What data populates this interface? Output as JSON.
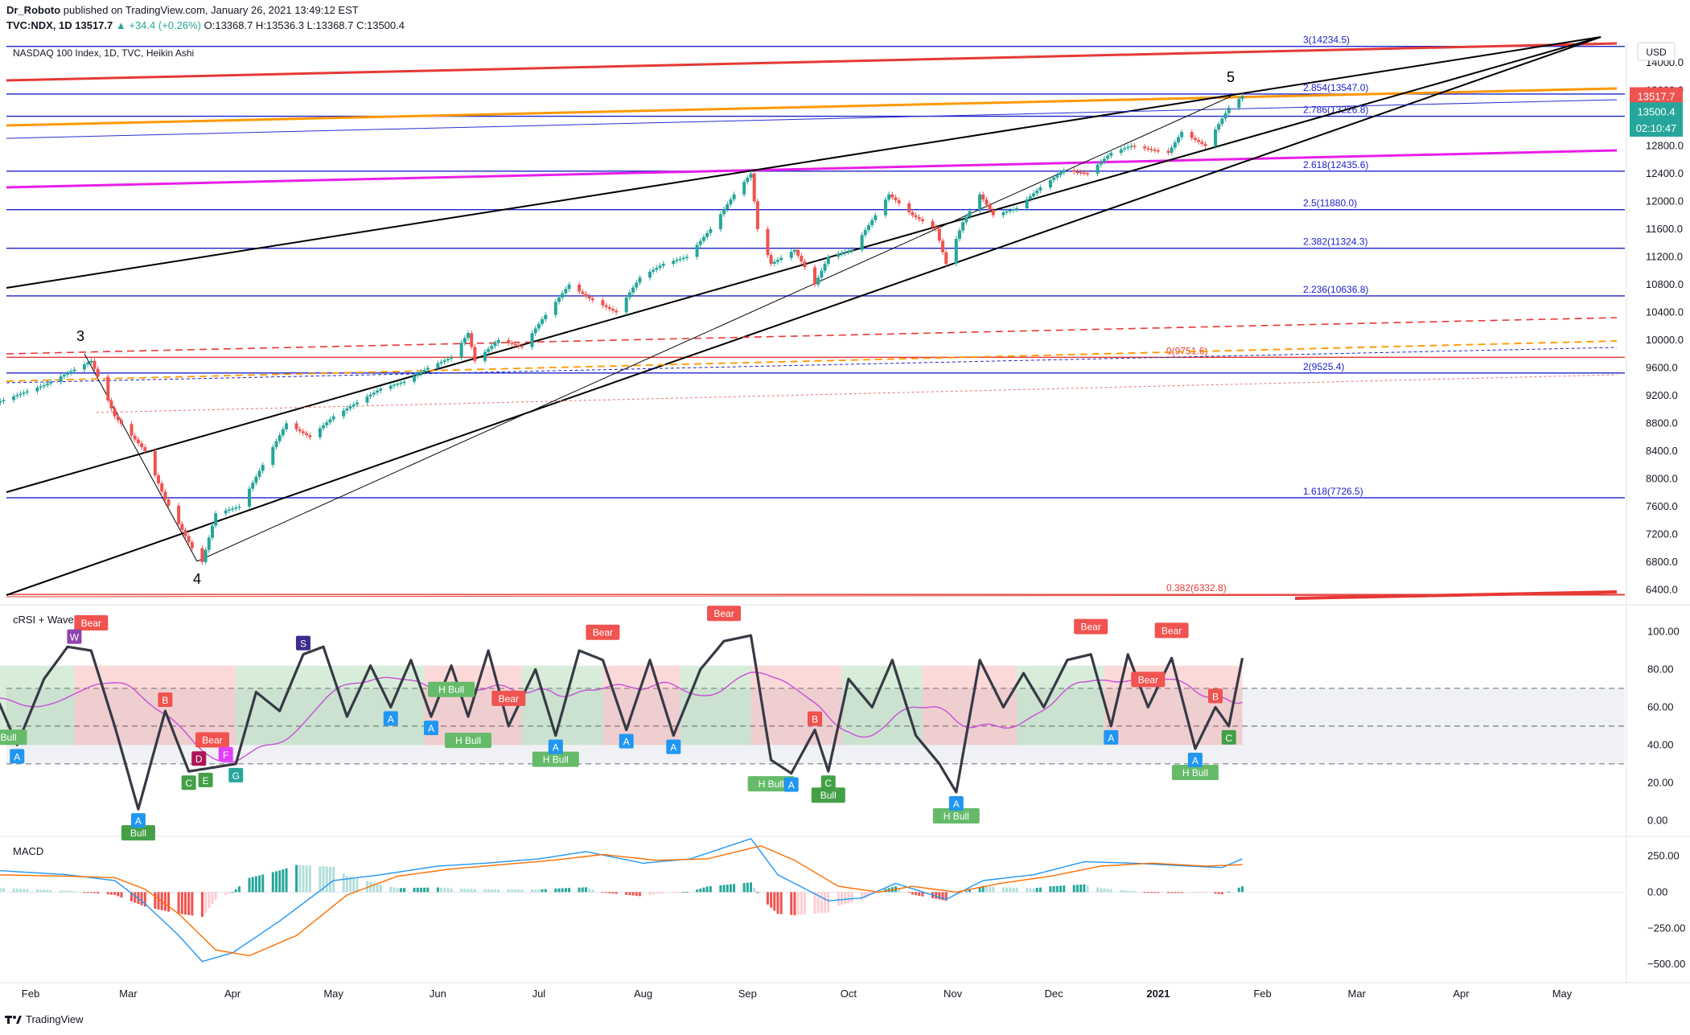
{
  "header": {
    "publisher": "Dr_Roboto",
    "published_text": "published on TradingView.com, January 26, 2021 13:49:12 EST",
    "symbol_line_prefix": "TVC:NDX, 1D",
    "last": "13517.7",
    "change": "▲ +34.4 (+0.26%)",
    "ohlc": "O:13368.7 H:13536.3 L:13368.7 C:13500.4",
    "chart_title": "NASDAQ 100 Index, 1D, TVC, Heikin Ashi",
    "currency": "USD"
  },
  "price_badges": {
    "last_price": "13517.7",
    "ha_close": "13500.4",
    "countdown": "02:10:47"
  },
  "colors": {
    "up": "#26a69a",
    "down": "#ef5350",
    "fib_blue": "#1e22c8",
    "red_line": "#e53935",
    "orange_line": "#ff9800",
    "magenta_line": "#e91ee9",
    "crsi_line": "#363a45",
    "macd_line": "#2196f3",
    "signal_line": "#ff6d00"
  },
  "chart_data": [
    {
      "type": "candlestick",
      "name": "price",
      "title": "NASDAQ 100 Index, 1D, TVC, Heikin Ashi",
      "y_ticks": [
        14000,
        13600,
        12800,
        12400,
        12000,
        11600,
        11200,
        10800,
        10400,
        10000,
        9600,
        9200,
        8800,
        8400,
        8000,
        7600,
        7200,
        6800,
        6400
      ],
      "y_tick_labels": [
        "14000.0",
        "13600.0",
        "12800.0",
        "12400.0",
        "12000.0",
        "11600.0",
        "11200.0",
        "10800.0",
        "10400.0",
        "10000.0",
        "9600.0",
        "9200.0",
        "8800.0",
        "8400.0",
        "8000.0",
        "7600.0",
        "7200.0",
        "6800.0",
        "6400.0"
      ],
      "ylim": [
        6300,
        14300
      ],
      "x_tick_labels": [
        "Feb",
        "Mar",
        "Apr",
        "May",
        "Jun",
        "Jul",
        "Aug",
        "Sep",
        "Oct",
        "Nov",
        "Dec",
        "2021",
        "Feb",
        "Mar",
        "Apr",
        "May"
      ],
      "x_tick_dates": [
        "2020-02-01",
        "2020-03-01",
        "2020-04-01",
        "2020-05-01",
        "2020-06-01",
        "2020-07-01",
        "2020-08-01",
        "2020-09-01",
        "2020-10-01",
        "2020-11-01",
        "2020-12-01",
        "2021-01-01",
        "2021-02-01",
        "2021-03-01",
        "2021-04-01",
        "2021-05-01"
      ],
      "close_path": [
        [
          "2020-01-22",
          9100
        ],
        [
          "2020-02-05",
          9350
        ],
        [
          "2020-02-19",
          9700
        ],
        [
          "2020-02-26",
          8900
        ],
        [
          "2020-03-06",
          8400
        ],
        [
          "2020-03-12",
          7700
        ],
        [
          "2020-03-20",
          7000
        ],
        [
          "2020-03-23",
          6800
        ],
        [
          "2020-03-27",
          7500
        ],
        [
          "2020-04-03",
          7600
        ],
        [
          "2020-04-10",
          8200
        ],
        [
          "2020-04-17",
          8800
        ],
        [
          "2020-04-24",
          8600
        ],
        [
          "2020-05-01",
          8900
        ],
        [
          "2020-05-08",
          9100
        ],
        [
          "2020-05-15",
          9300
        ],
        [
          "2020-05-22",
          9400
        ],
        [
          "2020-05-29",
          9600
        ],
        [
          "2020-06-05",
          9750
        ],
        [
          "2020-06-10",
          10100
        ],
        [
          "2020-06-12",
          9700
        ],
        [
          "2020-06-19",
          10000
        ],
        [
          "2020-06-26",
          9900
        ],
        [
          "2020-07-02",
          10300
        ],
        [
          "2020-07-10",
          10800
        ],
        [
          "2020-07-16",
          10600
        ],
        [
          "2020-07-24",
          10400
        ],
        [
          "2020-07-31",
          10900
        ],
        [
          "2020-08-07",
          11100
        ],
        [
          "2020-08-14",
          11200
        ],
        [
          "2020-08-21",
          11600
        ],
        [
          "2020-08-28",
          12100
        ],
        [
          "2020-09-02",
          12400
        ],
        [
          "2020-09-04",
          11600
        ],
        [
          "2020-09-08",
          11100
        ],
        [
          "2020-09-15",
          11300
        ],
        [
          "2020-09-21",
          10800
        ],
        [
          "2020-09-25",
          11200
        ],
        [
          "2020-10-02",
          11300
        ],
        [
          "2020-10-09",
          11800
        ],
        [
          "2020-10-13",
          12100
        ],
        [
          "2020-10-20",
          11800
        ],
        [
          "2020-10-27",
          11600
        ],
        [
          "2020-10-30",
          11100
        ],
        [
          "2020-11-04",
          11700
        ],
        [
          "2020-11-09",
          12100
        ],
        [
          "2020-11-13",
          11800
        ],
        [
          "2020-11-20",
          11900
        ],
        [
          "2020-11-27",
          12200
        ],
        [
          "2020-12-04",
          12450
        ],
        [
          "2020-12-11",
          12400
        ],
        [
          "2020-12-18",
          12700
        ],
        [
          "2020-12-24",
          12800
        ],
        [
          "2021-01-04",
          12700
        ],
        [
          "2021-01-08",
          13000
        ],
        [
          "2021-01-15",
          12800
        ],
        [
          "2021-01-22",
          13350
        ],
        [
          "2021-01-26",
          13517.7
        ]
      ],
      "fib_levels": [
        {
          "label": "3(14234.5)",
          "value": 14234.5
        },
        {
          "label": "2.854(13547.0)",
          "value": 13547.0
        },
        {
          "label": "2.786(13226.8)",
          "value": 13226.8
        },
        {
          "label": "2.618(12435.6)",
          "value": 12435.6
        },
        {
          "label": "2.5(11880.0)",
          "value": 11880.0
        },
        {
          "label": "2.382(11324.3)",
          "value": 11324.3
        },
        {
          "label": "2.236(10636.8)",
          "value": 10636.8
        },
        {
          "label": "0(9751.6)",
          "value": 9751.6
        },
        {
          "label": "2(9525.4)",
          "value": 9525.4
        },
        {
          "label": "1.618(7726.5)",
          "value": 7726.5
        },
        {
          "label": "0.382(6332.8)",
          "value": 6332.8
        }
      ],
      "wave_labels": [
        "3",
        "4",
        "5"
      ]
    },
    {
      "type": "line",
      "name": "cRSI + Wave",
      "title": "cRSI + Wave",
      "y_ticks": [
        100,
        80,
        60,
        40,
        20,
        0
      ],
      "y_tick_labels": [
        "100.00",
        "80.00",
        "60.00",
        "40.00",
        "20.00",
        "0.00"
      ],
      "ylim": [
        -5,
        110
      ],
      "reference_levels": [
        70,
        50,
        30
      ],
      "crsi_path": [
        [
          "2020-01-22",
          65
        ],
        [
          "2020-01-28",
          40
        ],
        [
          "2020-02-05",
          75
        ],
        [
          "2020-02-12",
          92
        ],
        [
          "2020-02-19",
          90
        ],
        [
          "2020-02-26",
          50
        ],
        [
          "2020-03-04",
          6
        ],
        [
          "2020-03-12",
          58
        ],
        [
          "2020-03-19",
          26
        ],
        [
          "2020-03-26",
          28
        ],
        [
          "2020-04-02",
          30
        ],
        [
          "2020-04-08",
          68
        ],
        [
          "2020-04-15",
          58
        ],
        [
          "2020-04-22",
          88
        ],
        [
          "2020-04-28",
          92
        ],
        [
          "2020-05-05",
          55
        ],
        [
          "2020-05-12",
          82
        ],
        [
          "2020-05-18",
          60
        ],
        [
          "2020-05-24",
          85
        ],
        [
          "2020-05-30",
          55
        ],
        [
          "2020-06-05",
          82
        ],
        [
          "2020-06-10",
          55
        ],
        [
          "2020-06-16",
          90
        ],
        [
          "2020-06-22",
          50
        ],
        [
          "2020-06-30",
          80
        ],
        [
          "2020-07-06",
          45
        ],
        [
          "2020-07-13",
          90
        ],
        [
          "2020-07-20",
          85
        ],
        [
          "2020-07-27",
          48
        ],
        [
          "2020-08-03",
          85
        ],
        [
          "2020-08-10",
          45
        ],
        [
          "2020-08-18",
          80
        ],
        [
          "2020-08-25",
          95
        ],
        [
          "2020-09-02",
          98
        ],
        [
          "2020-09-08",
          32
        ],
        [
          "2020-09-14",
          25
        ],
        [
          "2020-09-21",
          48
        ],
        [
          "2020-09-25",
          26
        ],
        [
          "2020-10-01",
          75
        ],
        [
          "2020-10-08",
          60
        ],
        [
          "2020-10-14",
          85
        ],
        [
          "2020-10-21",
          45
        ],
        [
          "2020-10-28",
          30
        ],
        [
          "2020-11-02",
          15
        ],
        [
          "2020-11-09",
          85
        ],
        [
          "2020-11-16",
          60
        ],
        [
          "2020-11-22",
          78
        ],
        [
          "2020-11-28",
          60
        ],
        [
          "2020-12-05",
          85
        ],
        [
          "2020-12-12",
          88
        ],
        [
          "2020-12-18",
          50
        ],
        [
          "2020-12-23",
          88
        ],
        [
          "2020-12-29",
          60
        ],
        [
          "2021-01-05",
          86
        ],
        [
          "2021-01-12",
          38
        ],
        [
          "2021-01-18",
          60
        ],
        [
          "2021-01-22",
          50
        ],
        [
          "2021-01-26",
          86
        ]
      ],
      "signal_labels": [
        "Bear",
        "Bear",
        "Bear",
        "Bear",
        "Bear",
        "Bear",
        "Bear",
        "Bear",
        "H Bull",
        "Bull",
        "H Bull",
        "H Bull",
        "H Bull",
        "H Bull",
        "Bull",
        "H Bull",
        "H Bull",
        "A",
        "A",
        "A",
        "A",
        "A",
        "A",
        "A",
        "A",
        "A",
        "A",
        "A",
        "B",
        "B",
        "B",
        "C",
        "C",
        "C",
        "D",
        "E",
        "F",
        "G",
        "S",
        "W"
      ]
    },
    {
      "type": "line",
      "name": "MACD",
      "title": "MACD",
      "y_ticks": [
        250,
        0,
        -250,
        -500
      ],
      "y_tick_labels": [
        "250.00",
        "0.00",
        "−250.00",
        "−500.00"
      ],
      "ylim": [
        -560,
        330
      ],
      "macd_path": [
        [
          "2020-01-22",
          150
        ],
        [
          "2020-02-12",
          120
        ],
        [
          "2020-02-26",
          80
        ],
        [
          "2020-03-06",
          -80
        ],
        [
          "2020-03-16",
          -300
        ],
        [
          "2020-03-23",
          -480
        ],
        [
          "2020-04-01",
          -420
        ],
        [
          "2020-04-15",
          -200
        ],
        [
          "2020-05-01",
          80
        ],
        [
          "2020-05-15",
          120
        ],
        [
          "2020-06-01",
          180
        ],
        [
          "2020-06-15",
          200
        ],
        [
          "2020-07-01",
          230
        ],
        [
          "2020-07-15",
          280
        ],
        [
          "2020-08-01",
          200
        ],
        [
          "2020-08-15",
          230
        ],
        [
          "2020-09-02",
          370
        ],
        [
          "2020-09-10",
          120
        ],
        [
          "2020-09-25",
          -60
        ],
        [
          "2020-10-05",
          -40
        ],
        [
          "2020-10-15",
          60
        ],
        [
          "2020-10-30",
          -50
        ],
        [
          "2020-11-10",
          80
        ],
        [
          "2020-11-25",
          120
        ],
        [
          "2020-12-10",
          210
        ],
        [
          "2020-12-25",
          200
        ],
        [
          "2021-01-10",
          180
        ],
        [
          "2021-01-20",
          170
        ],
        [
          "2021-01-26",
          230
        ]
      ],
      "signal_path": [
        [
          "2020-01-22",
          120
        ],
        [
          "2020-02-12",
          110
        ],
        [
          "2020-02-26",
          100
        ],
        [
          "2020-03-06",
          20
        ],
        [
          "2020-03-16",
          -150
        ],
        [
          "2020-03-27",
          -400
        ],
        [
          "2020-04-06",
          -440
        ],
        [
          "2020-04-20",
          -300
        ],
        [
          "2020-05-05",
          -20
        ],
        [
          "2020-05-20",
          110
        ],
        [
          "2020-06-05",
          160
        ],
        [
          "2020-06-20",
          190
        ],
        [
          "2020-07-05",
          220
        ],
        [
          "2020-07-20",
          260
        ],
        [
          "2020-08-05",
          220
        ],
        [
          "2020-08-20",
          230
        ],
        [
          "2020-09-05",
          320
        ],
        [
          "2020-09-15",
          220
        ],
        [
          "2020-09-28",
          40
        ],
        [
          "2020-10-10",
          0
        ],
        [
          "2020-10-20",
          40
        ],
        [
          "2020-11-02",
          0
        ],
        [
          "2020-11-15",
          60
        ],
        [
          "2020-11-30",
          110
        ],
        [
          "2020-12-15",
          180
        ],
        [
          "2020-12-30",
          200
        ],
        [
          "2021-01-15",
          180
        ],
        [
          "2021-01-26",
          190
        ]
      ]
    }
  ],
  "branding": "TradingView"
}
